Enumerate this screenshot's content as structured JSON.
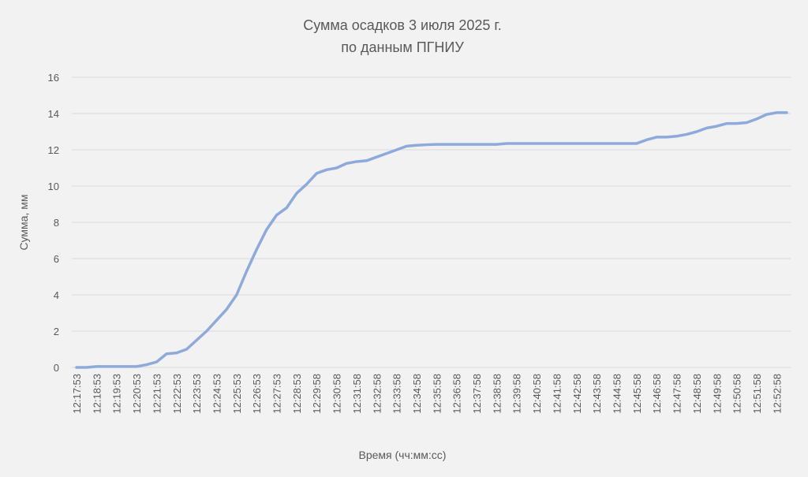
{
  "chart_data": {
    "type": "line",
    "title": "Сумма осадков 3 июля 2025 г.",
    "subtitle": "по данным ПГНИУ",
    "x_label": "Время (чч:мм:сс)",
    "y_label": "Сумма, мм",
    "categories": [
      "12:17:53",
      null,
      "12:18:53",
      null,
      "12:19:53",
      null,
      "12:20:53",
      null,
      "12:21:53",
      null,
      "12:22:53",
      null,
      "12:23:53",
      null,
      "12:24:53",
      null,
      "12:25:53",
      null,
      "12:26:53",
      null,
      "12:27:53",
      null,
      "12:28:53",
      null,
      "12:29:58",
      null,
      "12:30:58",
      null,
      "12:31:58",
      null,
      "12:32:58",
      null,
      "12:33:58",
      null,
      "12:34:58",
      null,
      "12:35:58",
      null,
      "12:36:58",
      null,
      "12:37:58",
      null,
      "12:38:58",
      null,
      "12:39:58",
      null,
      "12:40:58",
      null,
      "12:41:58",
      null,
      "12:42:58",
      null,
      "12:43:58",
      null,
      "12:44:58",
      null,
      "12:45:58",
      null,
      "12:46:58",
      null,
      "12:47:58",
      null,
      "12:48:58",
      null,
      "12:49:58",
      null,
      "12:50:58",
      null,
      "12:51:58",
      null,
      "12:52:58",
      null
    ],
    "series": [
      {
        "name": "Сумма",
        "color": "#8eaadb",
        "values": [
          0,
          0,
          0.05,
          0.05,
          0.05,
          0.05,
          0.05,
          0.15,
          0.3,
          0.75,
          0.8,
          1.0,
          1.5,
          2.0,
          2.6,
          3.2,
          4.0,
          5.3,
          6.5,
          7.6,
          8.4,
          8.8,
          9.6,
          10.1,
          10.7,
          10.9,
          11.0,
          11.25,
          11.35,
          11.4,
          11.6,
          11.8,
          12.0,
          12.2,
          12.25,
          12.28,
          12.3,
          12.3,
          12.3,
          12.3,
          12.3,
          12.3,
          12.3,
          12.35,
          12.35,
          12.35,
          12.35,
          12.35,
          12.35,
          12.35,
          12.35,
          12.35,
          12.35,
          12.35,
          12.35,
          12.35,
          12.35,
          12.55,
          12.7,
          12.7,
          12.75,
          12.85,
          13.0,
          13.2,
          13.3,
          13.45,
          13.45,
          13.5,
          13.7,
          13.95,
          14.05,
          14.05
        ]
      }
    ],
    "ylim": [
      0,
      16
    ],
    "yticks": [
      0,
      2,
      4,
      6,
      8,
      10,
      12,
      14,
      16
    ],
    "grid": true
  }
}
